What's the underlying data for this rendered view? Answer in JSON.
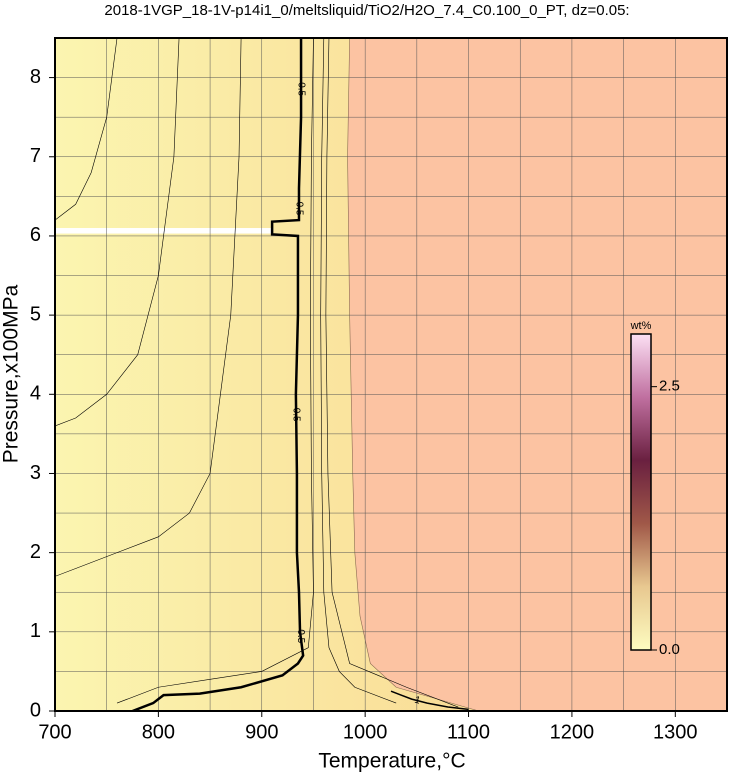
{
  "chart_data": {
    "type": "contour",
    "title": "2018-1VGP_18-1V-p14i1_0/meltsliquid/TiO2/H2O_7.4_C0.100_0_PT, dz=0.05:",
    "x_label": "Temperature,°C",
    "y_label": "Pressure,x100MPa",
    "xlim": [
      700,
      1350
    ],
    "ylim": [
      0,
      8.5
    ],
    "xticks": [
      700,
      800,
      900,
      1000,
      1100,
      1200,
      1300
    ],
    "yticks": [
      0,
      1,
      2,
      3,
      4,
      5,
      6,
      7,
      8
    ],
    "xgrid": [
      750,
      850,
      950,
      1050,
      1150,
      1250
    ],
    "ygrid": [
      0.5,
      1.5,
      2.5,
      3.5,
      4.5,
      5.5,
      6.5,
      7.5
    ],
    "grid": true,
    "field_colors": [
      "#fbf5b0",
      "#f9dc96",
      "#fcc3a2"
    ],
    "boundary": {
      "x": [
        985,
        983,
        985,
        988,
        990,
        995,
        1005,
        1030,
        1070,
        1110
      ],
      "y": [
        8.5,
        7,
        5,
        3,
        2,
        1.2,
        0.6,
        0.3,
        0.15,
        0
      ]
    },
    "nodata_band": {
      "x": [
        700,
        910
      ],
      "y": [
        6.03,
        6.1
      ],
      "color": "#ffffff"
    },
    "contours": [
      {
        "label": "0.5",
        "width": 2.5,
        "x": [
          938,
          938,
          936,
          936,
          910,
          910,
          935,
          935,
          933,
          934,
          934,
          936,
          937,
          940,
          935,
          920,
          880,
          840,
          805,
          795,
          775
        ],
        "y": [
          8.5,
          7.5,
          6.6,
          6.2,
          6.18,
          6.02,
          6.0,
          5,
          4,
          3,
          2,
          1.5,
          1.0,
          0.7,
          0.6,
          0.45,
          0.3,
          0.22,
          0.2,
          0.1,
          0
        ]
      },
      {
        "label": "1",
        "width": 1.5,
        "x": [
          1025,
          1035,
          1045,
          1060,
          1080,
          1100
        ],
        "y": [
          0.25,
          0.2,
          0.15,
          0.1,
          0.05,
          0.02
        ]
      },
      {
        "width": 0.6,
        "x": [
          960,
          958,
          957,
          958,
          960,
          965,
          975,
          990,
          1030
        ],
        "y": [
          8.5,
          7,
          5,
          3,
          1.5,
          0.8,
          0.5,
          0.3,
          0.1
        ]
      },
      {
        "width": 0.6,
        "x": [
          950,
          948,
          947,
          948,
          950,
          945,
          900,
          850,
          800,
          760
        ],
        "y": [
          8.5,
          7,
          5,
          3,
          1.5,
          0.8,
          0.5,
          0.4,
          0.3,
          0.1
        ]
      },
      {
        "width": 0.6,
        "x": [
          880,
          878,
          870,
          860,
          850,
          830,
          800,
          760,
          720,
          700
        ],
        "y": [
          8.5,
          7,
          5,
          4,
          3,
          2.5,
          2.2,
          2.0,
          1.8,
          1.7
        ]
      },
      {
        "width": 0.6,
        "x": [
          820,
          815,
          800,
          780,
          750,
          720,
          700
        ],
        "y": [
          8.5,
          7,
          5.5,
          4.5,
          4,
          3.7,
          3.6
        ]
      },
      {
        "width": 0.6,
        "x": [
          760,
          750,
          735,
          720,
          700
        ],
        "y": [
          8.5,
          7.5,
          6.8,
          6.4,
          6.2
        ]
      },
      {
        "width": 0.6,
        "x": [
          965,
          963,
          962,
          964,
          968,
          985,
          1040,
          1090
        ],
        "y": [
          8.5,
          7,
          5,
          3,
          1.5,
          0.6,
          0.3,
          0.05
        ]
      }
    ],
    "colorbar": {
      "label": "wt%",
      "lim": [
        0,
        3.0
      ],
      "colors": [
        "#fdfcc0",
        "#e8c890",
        "#a05848",
        "#6a2040",
        "#c070a0",
        "#fce0f4"
      ],
      "ticks": [
        {
          "value": 0,
          "label": "0.0"
        },
        2.5
      ]
    }
  }
}
